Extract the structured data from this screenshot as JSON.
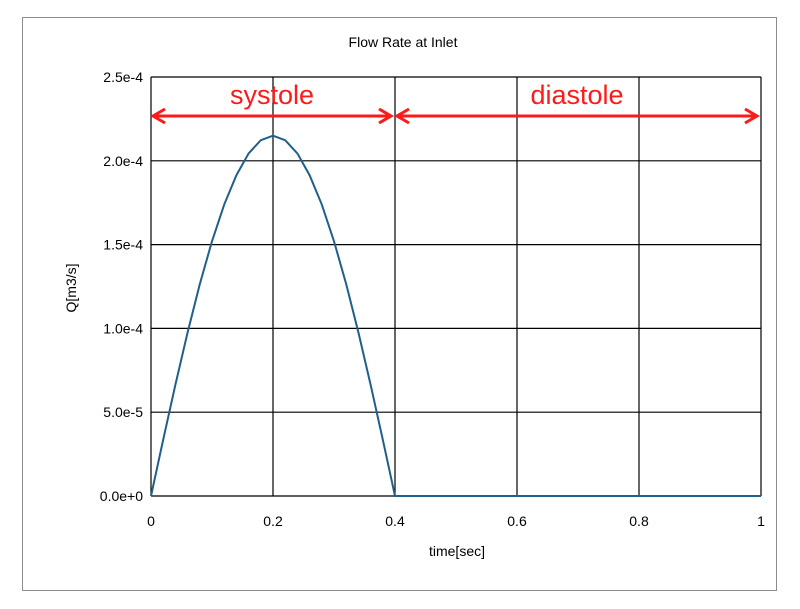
{
  "chart_data": {
    "type": "line",
    "title": "Flow Rate at Inlet",
    "xlabel": "time[sec]",
    "ylabel": "Q[m3/s]",
    "xlim": [
      0,
      1
    ],
    "ylim": [
      0,
      0.00025
    ],
    "x_ticks": [
      0,
      0.2,
      0.4,
      0.6,
      0.8,
      1
    ],
    "x_tick_labels": [
      "0",
      "0.2",
      "0.4",
      "0.6",
      "0.8",
      "1"
    ],
    "y_ticks": [
      0,
      5e-05,
      0.0001,
      0.00015,
      0.0002,
      0.00025
    ],
    "y_tick_labels": [
      "0.0e+0",
      "5.0e-5",
      "1.0e-4",
      "1.5e-4",
      "2.0e-4",
      "2.5e-4"
    ],
    "grid": true,
    "series": [
      {
        "color": "#1f5f8b",
        "x": [
          0,
          0.02,
          0.04,
          0.06,
          0.08,
          0.1,
          0.12,
          0.14,
          0.16,
          0.18,
          0.2,
          0.22,
          0.24,
          0.26,
          0.28,
          0.3,
          0.32,
          0.34,
          0.36,
          0.38,
          0.4,
          0.5,
          0.6,
          0.7,
          0.8,
          0.9,
          1.0
        ],
        "y": [
          0,
          3.36e-05,
          6.64e-05,
          9.76e-05,
          0.0001264,
          0.000152,
          0.0001739,
          0.0001914,
          0.0002044,
          0.0002123,
          0.000215,
          0.0002123,
          0.0002044,
          0.0001914,
          0.0001739,
          0.000152,
          0.0001264,
          9.76e-05,
          6.64e-05,
          3.36e-05,
          0,
          0,
          0,
          0,
          0,
          0,
          0
        ]
      }
    ],
    "annotations": [
      {
        "text": "systole",
        "x_start": 0,
        "x_end": 0.4,
        "color": "#ff1a1a"
      },
      {
        "text": "diastole",
        "x_start": 0.4,
        "x_end": 1.0,
        "color": "#ff1a1a"
      }
    ]
  }
}
